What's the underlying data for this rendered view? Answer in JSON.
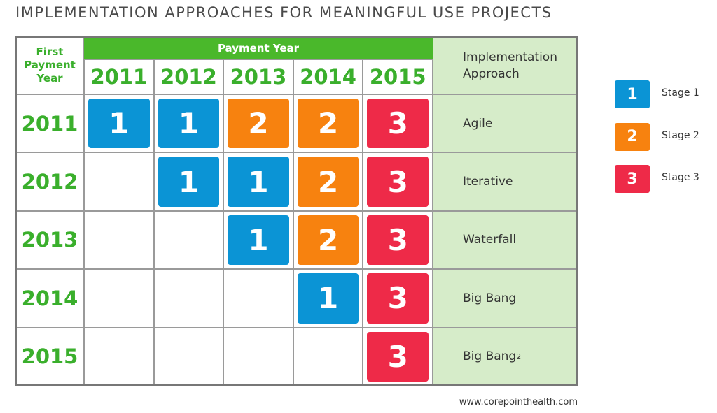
{
  "title": "IMPLEMENTATION APPROACHES FOR MEANINGFUL USE PROJECTS",
  "table": {
    "first_year_header": "First Payment Year",
    "payment_year_header": "Payment Year",
    "approach_header": "Implementation Approach",
    "columns": [
      "2011",
      "2012",
      "2013",
      "2014",
      "2015"
    ],
    "rows": [
      {
        "year": "2011",
        "stages": [
          1,
          1,
          2,
          2,
          3
        ],
        "approach": "Agile"
      },
      {
        "year": "2012",
        "stages": [
          null,
          1,
          1,
          2,
          3
        ],
        "approach": "Iterative"
      },
      {
        "year": "2013",
        "stages": [
          null,
          null,
          1,
          2,
          3
        ],
        "approach": "Waterfall"
      },
      {
        "year": "2014",
        "stages": [
          null,
          null,
          null,
          1,
          3
        ],
        "approach": "Big Bang"
      },
      {
        "year": "2015",
        "stages": [
          null,
          null,
          null,
          null,
          3
        ],
        "approach": "Big Bang",
        "approach_sup": "2"
      }
    ]
  },
  "legend": [
    {
      "stage": 1,
      "label": "Stage 1",
      "color": "#0b94d5"
    },
    {
      "stage": 2,
      "label": "Stage 2",
      "color": "#f7820f"
    },
    {
      "stage": 3,
      "label": "Stage 3",
      "color": "#ee2a48"
    }
  ],
  "footer": "www.corepointhealth.com"
}
